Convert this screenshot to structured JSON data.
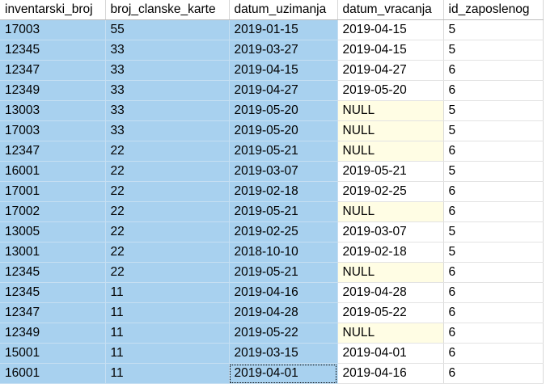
{
  "columns": [
    "inventarski_broj",
    "broj_clanske_karte",
    "datum_uzimanja",
    "datum_vracanja",
    "id_zaposlenog"
  ],
  "rows": [
    [
      "17003",
      "55",
      "2019-01-15",
      "2019-04-15",
      "5"
    ],
    [
      "12345",
      "33",
      "2019-03-27",
      "2019-04-15",
      "5"
    ],
    [
      "12347",
      "33",
      "2019-04-15",
      "2019-04-27",
      "6"
    ],
    [
      "12349",
      "33",
      "2019-04-27",
      "2019-05-20",
      "6"
    ],
    [
      "13003",
      "33",
      "2019-05-20",
      "NULL",
      "5"
    ],
    [
      "17003",
      "33",
      "2019-05-20",
      "NULL",
      "5"
    ],
    [
      "12347",
      "22",
      "2019-05-21",
      "NULL",
      "6"
    ],
    [
      "16001",
      "22",
      "2019-03-07",
      "2019-05-21",
      "5"
    ],
    [
      "17001",
      "22",
      "2019-02-18",
      "2019-02-25",
      "6"
    ],
    [
      "17002",
      "22",
      "2019-05-21",
      "NULL",
      "6"
    ],
    [
      "13005",
      "22",
      "2019-02-25",
      "2019-03-07",
      "5"
    ],
    [
      "13001",
      "22",
      "2018-10-10",
      "2019-02-18",
      "5"
    ],
    [
      "12345",
      "22",
      "2019-05-21",
      "NULL",
      "6"
    ],
    [
      "12345",
      "11",
      "2019-04-16",
      "2019-04-28",
      "6"
    ],
    [
      "12347",
      "11",
      "2019-04-28",
      "2019-05-22",
      "6"
    ],
    [
      "12349",
      "11",
      "2019-05-22",
      "NULL",
      "6"
    ],
    [
      "15001",
      "11",
      "2019-03-15",
      "2019-04-01",
      "6"
    ],
    [
      "16001",
      "11",
      "2019-04-01",
      "2019-04-16",
      "6"
    ]
  ],
  "selection": {
    "selected_columns": [
      0,
      1,
      2
    ],
    "focused_cell": [
      17,
      2
    ]
  },
  "colors": {
    "selected_cell": "#a8d1ef",
    "null_cell": "#fffde4",
    "plain_cell": "#ffffff"
  }
}
